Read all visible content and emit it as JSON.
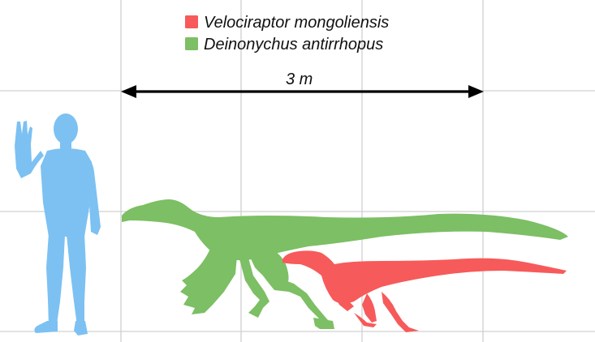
{
  "legend": {
    "items": [
      {
        "label": "Velociraptor mongoliensis",
        "color": "#f75a5a"
      },
      {
        "label": "Deinonychus antirrhopus",
        "color": "#7cbf64"
      }
    ]
  },
  "scale_bar": {
    "label": "3 m"
  },
  "colors": {
    "human": "#7cc1f2",
    "grid": "#d0d0d0",
    "arrow": "#000000"
  },
  "silhouettes": [
    "human-silhouette",
    "deinonychus-silhouette",
    "velociraptor-silhouette"
  ]
}
